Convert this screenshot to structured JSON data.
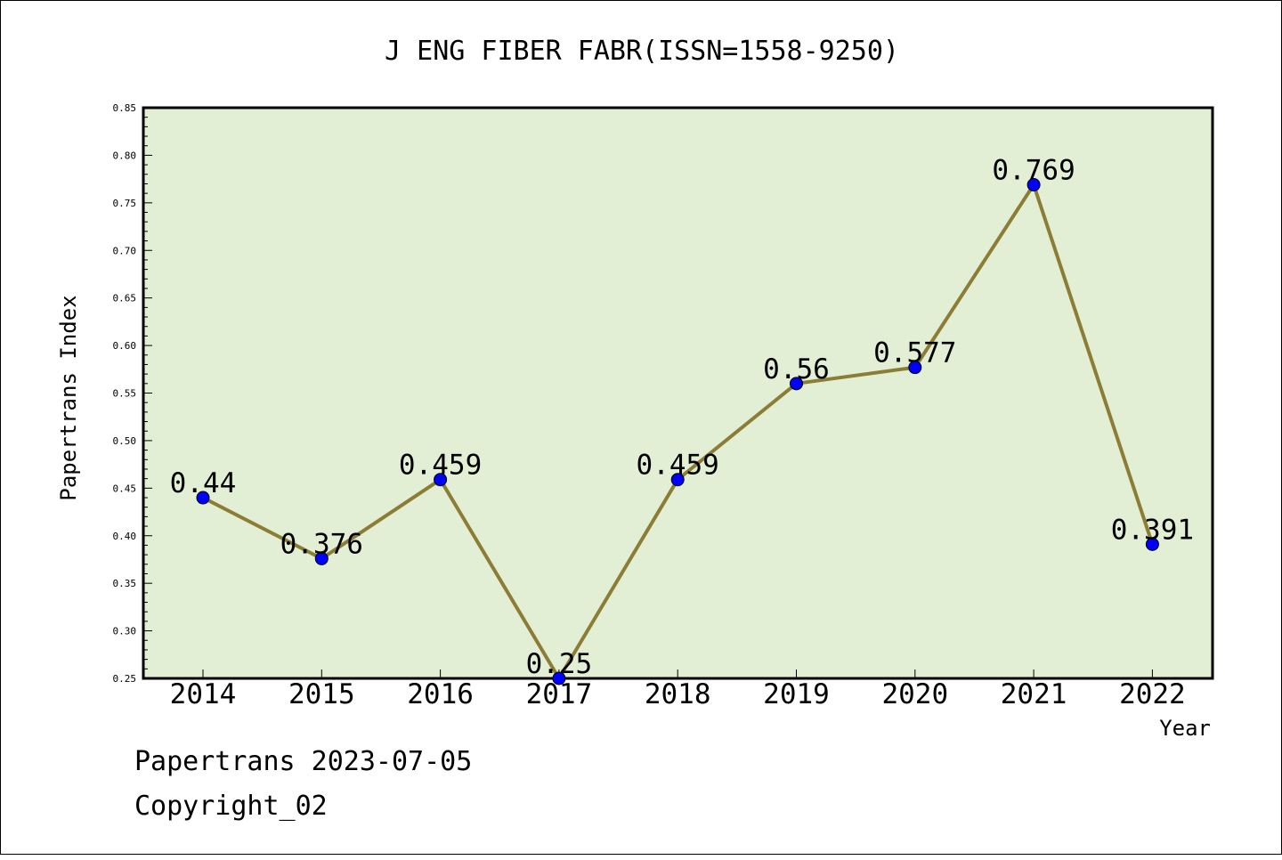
{
  "chart_data": {
    "type": "line",
    "title": "J ENG FIBER FABR(ISSN=1558-9250)",
    "xlabel": "Year",
    "ylabel": "Papertrans Index",
    "categories": [
      "2014",
      "2015",
      "2016",
      "2017",
      "2018",
      "2019",
      "2020",
      "2021",
      "2022"
    ],
    "values": [
      0.44,
      0.376,
      0.459,
      0.25,
      0.459,
      0.56,
      0.577,
      0.769,
      0.391
    ],
    "data_labels": [
      "0.44",
      "0.376",
      "0.459",
      "0.25",
      "0.459",
      "0.56",
      "0.577",
      "0.769",
      "0.391"
    ],
    "ylim": [
      0.25,
      0.85
    ],
    "yticks": [
      "0.25",
      "0.30",
      "0.35",
      "0.40",
      "0.45",
      "0.50",
      "0.55",
      "0.60",
      "0.65",
      "0.70",
      "0.75",
      "0.80",
      "0.85"
    ],
    "grid": false,
    "colors": {
      "plot_background": "#e2efd5",
      "line": "#8b7d35",
      "marker": "#0000ff"
    }
  },
  "footer": {
    "line1": "Papertrans 2023-07-05",
    "line2": "Copyright_02"
  }
}
